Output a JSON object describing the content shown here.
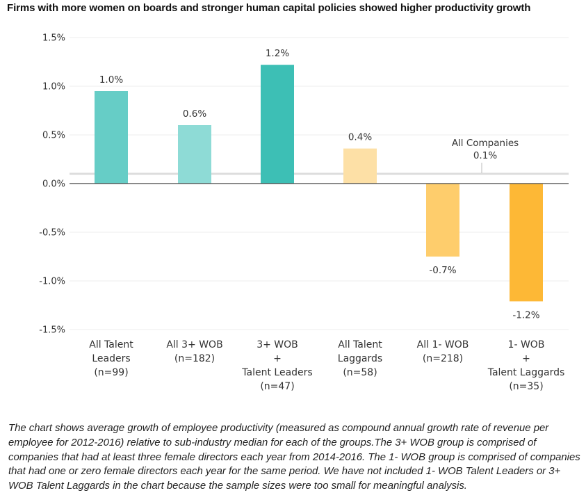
{
  "title": "Firms with more women on boards and stronger human capital policies showed higher productivity growth",
  "chart_data": {
    "type": "bar",
    "categories": [
      [
        "All Talent",
        "Leaders",
        "(n=99)"
      ],
      [
        "All 3+ WOB",
        "(n=182)"
      ],
      [
        "3+ WOB",
        "+",
        "Talent Leaders",
        "(n=47)"
      ],
      [
        "All Talent",
        "Laggards",
        "(n=58)"
      ],
      [
        "All 1- WOB",
        "(n=218)"
      ],
      [
        "1- WOB",
        "+",
        "Talent Laggards",
        "(n=35)"
      ]
    ],
    "values": [
      0.95,
      0.6,
      1.22,
      0.36,
      -0.75,
      -1.21
    ],
    "data_labels": [
      "1.0%",
      "0.6%",
      "1.2%",
      "0.4%",
      "-0.7%",
      "-1.2%"
    ],
    "colors": [
      "#66cdc6",
      "#8edbd6",
      "#3dbfb5",
      "#fde0a6",
      "#fecd6c",
      "#fdb836"
    ],
    "yticks": [
      1.5,
      1.0,
      0.5,
      0.0,
      -0.5,
      -1.0,
      -1.5
    ],
    "ytick_labels": [
      "1.5%",
      "1.0%",
      "0.5%",
      "0.0%",
      "-0.5%",
      "-1.0%",
      "-1.5%"
    ],
    "ylim": [
      -1.5,
      1.5
    ],
    "reference_line": {
      "value": 0.1,
      "label": "All Companies",
      "value_label": "0.1%",
      "color": "#dddddd"
    },
    "grid": true,
    "legend": "none"
  },
  "note": "The chart shows average growth of employee productivity (measured as compound annual growth rate of revenue per employee for 2012-2016) relative to sub-industry median for each of the groups.The 3+ WOB group is comprised of companies that had at least three female directors each year from 2014-2016. The 1- WOB group is comprised of companies that had one or zero female directors each year for the same period. We have not included 1- WOB Talent Leaders or 3+ WOB Talent Laggards in the chart because the sample sizes were too small for meaningful analysis."
}
